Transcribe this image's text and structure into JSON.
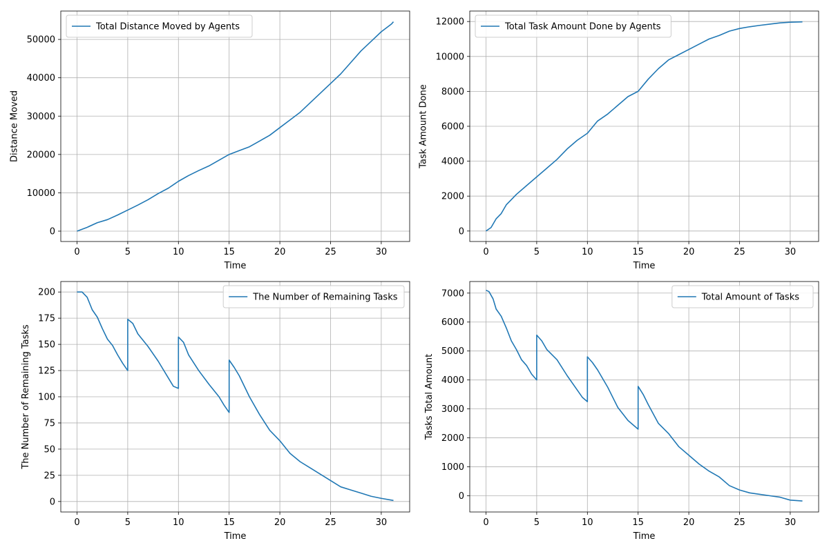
{
  "chart_data": [
    {
      "type": "line",
      "title": "",
      "xlabel": "Time",
      "ylabel": "Distance Moved",
      "xlim": [
        -1.6,
        32.8
      ],
      "ylim": [
        -2700,
        57400
      ],
      "xticks": [
        0,
        5,
        10,
        15,
        20,
        25,
        30
      ],
      "yticks": [
        0,
        10000,
        20000,
        30000,
        40000,
        50000
      ],
      "grid": true,
      "legend": "upper left",
      "line_color": "#1f77b4",
      "series": [
        {
          "name": "Total Distance Moved by Agents",
          "x": [
            0,
            1,
            2,
            3,
            4,
            5,
            6,
            7,
            8,
            9,
            10,
            11,
            12,
            13,
            14,
            15,
            16,
            17,
            18,
            19,
            20,
            21,
            22,
            23,
            24,
            25,
            26,
            27,
            28,
            29,
            30,
            31,
            31.2
          ],
          "y": [
            0,
            1000,
            2200,
            3000,
            4200,
            5500,
            6800,
            8200,
            9800,
            11200,
            13000,
            14500,
            15800,
            17000,
            18500,
            20000,
            21000,
            22000,
            23500,
            25000,
            27000,
            29000,
            31000,
            33500,
            36000,
            38500,
            41000,
            44000,
            47000,
            49500,
            52000,
            54000,
            54600
          ]
        }
      ]
    },
    {
      "type": "line",
      "title": "",
      "xlabel": "Time",
      "ylabel": "Task Amount Done",
      "xlim": [
        -1.6,
        32.8
      ],
      "ylim": [
        -600,
        12600
      ],
      "xticks": [
        0,
        5,
        10,
        15,
        20,
        25,
        30
      ],
      "yticks": [
        0,
        2000,
        4000,
        6000,
        8000,
        10000,
        12000
      ],
      "grid": true,
      "legend": "upper left",
      "line_color": "#1f77b4",
      "series": [
        {
          "name": "Total Task Amount Done by Agents",
          "x": [
            0,
            0.5,
            1,
            1.5,
            2,
            2.5,
            3,
            4,
            5,
            6,
            7,
            8,
            9,
            10,
            11,
            12,
            13,
            14,
            15,
            16,
            17,
            18,
            19,
            20,
            21,
            22,
            23,
            24,
            25,
            26,
            27,
            28,
            29,
            30,
            31.2
          ],
          "y": [
            0,
            200,
            700,
            1000,
            1500,
            1800,
            2100,
            2600,
            3100,
            3600,
            4100,
            4700,
            5200,
            5600,
            6300,
            6700,
            7200,
            7700,
            8000,
            8700,
            9300,
            9800,
            10100,
            10400,
            10700,
            11000,
            11200,
            11450,
            11600,
            11700,
            11780,
            11850,
            11920,
            11960,
            11980
          ]
        }
      ]
    },
    {
      "type": "line",
      "title": "",
      "xlabel": "Time",
      "ylabel": "The Number of Remaining Tasks",
      "xlim": [
        -1.6,
        32.8
      ],
      "ylim": [
        -10,
        210
      ],
      "xticks": [
        0,
        5,
        10,
        15,
        20,
        25,
        30
      ],
      "yticks": [
        0,
        25,
        50,
        75,
        100,
        125,
        150,
        175,
        200
      ],
      "grid": true,
      "legend": "upper right",
      "line_color": "#1f77b4",
      "series": [
        {
          "name": "The Number of Remaining Tasks",
          "x": [
            0,
            0.5,
            1,
            1.5,
            2,
            2.5,
            3,
            3.5,
            4,
            4.5,
            5,
            5,
            5.5,
            6,
            7,
            8,
            9,
            9.5,
            10,
            10,
            10.5,
            11,
            12,
            13,
            14,
            14.5,
            15,
            15,
            15.5,
            16,
            17,
            18,
            19,
            20,
            21,
            22,
            23,
            24,
            25,
            26,
            27,
            28,
            29,
            30,
            31.2
          ],
          "y": [
            200,
            200,
            195,
            183,
            176,
            165,
            155,
            149,
            140,
            132,
            125,
            174,
            170,
            160,
            148,
            134,
            118,
            110,
            108,
            157,
            152,
            140,
            125,
            112,
            100,
            92,
            85,
            135,
            128,
            120,
            100,
            83,
            68,
            58,
            46,
            38,
            32,
            26,
            20,
            14,
            11,
            8,
            5,
            3,
            1
          ]
        }
      ]
    },
    {
      "type": "line",
      "title": "",
      "xlabel": "Time",
      "ylabel": "Tasks Total Amount",
      "xlim": [
        -1.6,
        32.8
      ],
      "ylim": [
        -560,
        7400
      ],
      "xticks": [
        0,
        5,
        10,
        15,
        20,
        25,
        30
      ],
      "yticks": [
        0,
        1000,
        2000,
        3000,
        4000,
        5000,
        6000,
        7000
      ],
      "grid": true,
      "legend": "upper right",
      "line_color": "#1f77b4",
      "series": [
        {
          "name": "Total Amount of Tasks",
          "x": [
            0,
            0.3,
            0.7,
            1,
            1.5,
            2,
            2.5,
            3,
            3.5,
            4,
            4.5,
            5,
            5,
            5.5,
            6,
            7,
            8,
            9,
            9.5,
            10,
            10,
            10.5,
            11,
            12,
            13,
            14,
            15,
            15,
            15.5,
            16,
            17,
            18,
            19,
            20,
            21,
            22,
            23,
            24,
            25,
            26,
            27,
            28,
            29,
            30,
            31.2
          ],
          "y": [
            7100,
            7050,
            6800,
            6450,
            6200,
            5800,
            5350,
            5050,
            4700,
            4500,
            4200,
            4000,
            5550,
            5350,
            5050,
            4700,
            4150,
            3650,
            3400,
            3250,
            4800,
            4600,
            4350,
            3750,
            3050,
            2600,
            2300,
            3780,
            3500,
            3150,
            2500,
            2150,
            1700,
            1400,
            1100,
            850,
            650,
            350,
            200,
            100,
            50,
            0,
            -50,
            -150,
            -180
          ]
        }
      ]
    }
  ]
}
